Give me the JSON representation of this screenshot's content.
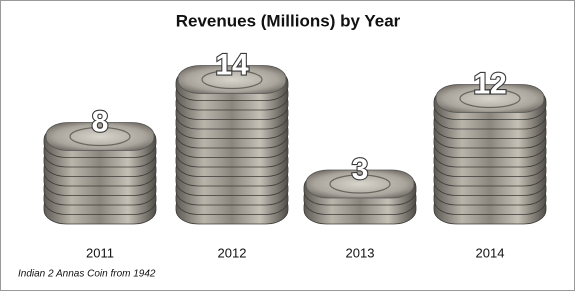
{
  "chart_data": {
    "type": "pictograph",
    "title": "Revenues (Millions) by Year",
    "categories": [
      "2011",
      "2012",
      "2013",
      "2014"
    ],
    "values": [
      8,
      14,
      3,
      12
    ],
    "footnote": "Indian 2 Annas Coin from 1942"
  }
}
